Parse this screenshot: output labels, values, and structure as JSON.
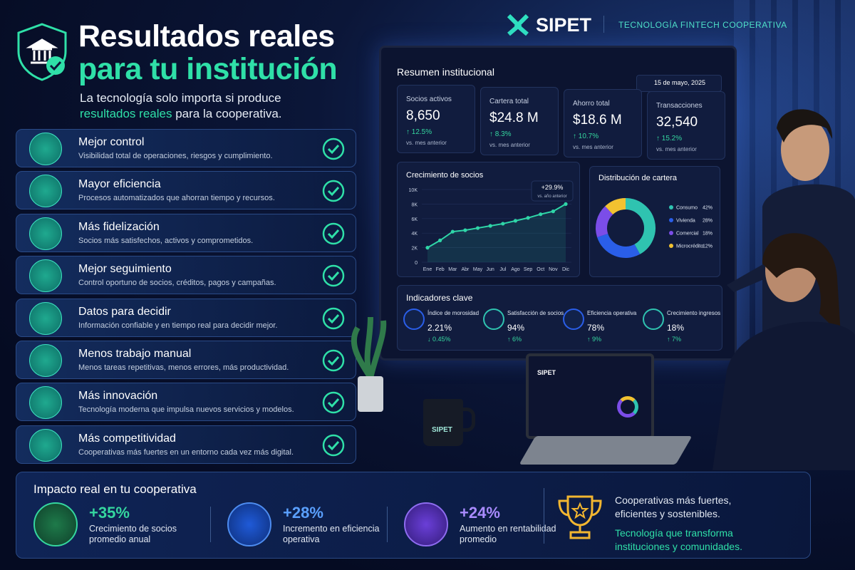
{
  "brand": {
    "name": "SIPET",
    "tagline": "TECNOLOGÍA FINTECH COOPERATIVA"
  },
  "header": {
    "title_line1": "Resultados reales",
    "title_line2": "para tu institución",
    "subtitle_line1": "La tecnología solo importa si produce",
    "subtitle_highlight": "resultados reales",
    "subtitle_end": "para la cooperativa."
  },
  "benefits": [
    {
      "title": "Mejor control",
      "description": "Visibilidad total de operaciones, riesgos y cumplimiento."
    },
    {
      "title": "Mayor eficiencia",
      "description": "Procesos automatizados que ahorran tiempo y recursos."
    },
    {
      "title": "Más fidelización",
      "description": "Socios más satisfechos, activos y comprometidos."
    },
    {
      "title": "Mejor seguimiento",
      "description": "Control oportuno de socios, créditos, pagos y campañas."
    },
    {
      "title": "Datos para decidir",
      "description": "Información confiable y en tiempo real para decidir mejor."
    },
    {
      "title": "Menos trabajo manual",
      "description": "Menos tareas repetitivas, menos errores, más productividad."
    },
    {
      "title": "Más innovación",
      "description": "Tecnología moderna que impulsa nuevos servicios y modelos."
    },
    {
      "title": "Más competitividad",
      "description": "Cooperativas más fuertes en un entorno cada vez más digital."
    }
  ],
  "dashboard": {
    "title": "Resumen institucional",
    "date": "15 de mayo, 2025",
    "kpis": [
      {
        "label": "Socios activos",
        "value": "8,650",
        "change": "12.5%",
        "note": "vs. mes anterior"
      },
      {
        "label": "Cartera total",
        "value": "$24.8 M",
        "change": "8.3%",
        "note": "vs. mes anterior"
      },
      {
        "label": "Ahorro total",
        "value": "$18.6 M",
        "change": "10.7%",
        "note": "vs. mes anterior"
      },
      {
        "label": "Transacciones",
        "value": "32,540",
        "change": "15.2%",
        "note": "vs. mes anterior"
      }
    ],
    "growth_chart": {
      "type": "line",
      "title": "Crecimiento de socios",
      "badge": "+29.9%",
      "badge_note": "vs. año anterior",
      "color": "#2fd6a8",
      "categories": [
        "Ene",
        "Feb",
        "Mar",
        "Abr",
        "May",
        "Jun",
        "Jul",
        "Ago",
        "Sep",
        "Oct",
        "Nov",
        "Dic"
      ],
      "values": [
        2000,
        3000,
        4200,
        4400,
        4700,
        5000,
        5300,
        5700,
        6100,
        6600,
        7000,
        8000
      ],
      "ylim": [
        0,
        10000
      ],
      "yticks": [
        0,
        {
          "value": 2000,
          "label": "2K"
        },
        {
          "value": 4000,
          "label": "4K"
        },
        {
          "value": 6000,
          "label": "6K"
        },
        {
          "value": 8000,
          "label": "8K"
        },
        {
          "value": 10000,
          "label": "10K"
        }
      ]
    },
    "distribution_chart": {
      "type": "pie",
      "title": "Distribución de cartera",
      "categories": [
        "Consumo",
        "Vivienda",
        "Comercial",
        "Microcrédito"
      ],
      "values": [
        42,
        28,
        18,
        12
      ],
      "value_labels": [
        "42%",
        "28%",
        "18%",
        "12%"
      ],
      "colors": [
        "#2fc3b0",
        "#2a5ee8",
        "#7b4de8",
        "#f2c230"
      ]
    },
    "indicators": {
      "title": "Indicadores clave",
      "items": [
        {
          "label": "Índice de morosidad",
          "value": "2.21%",
          "change": "0.45%"
        },
        {
          "label": "Satisfacción de socios",
          "value": "94%",
          "change": "6%"
        },
        {
          "label": "Eficiencia operativa",
          "value": "78%",
          "change": "9%"
        },
        {
          "label": "Crecimiento ingresos",
          "value": "18%",
          "change": "7%"
        }
      ]
    }
  },
  "laptop": {
    "brand": "SIPET"
  },
  "mug": {
    "brand": "SIPET"
  },
  "impact": {
    "title": "Impacto real en tu cooperativa",
    "items": [
      {
        "value": "+35%",
        "label_line1": "Crecimiento de socios",
        "label_line2": "promedio anual"
      },
      {
        "value": "+28%",
        "label_line1": "Incremento en eficiencia",
        "label_line2": "operativa"
      },
      {
        "value": "+24%",
        "label_line1": "Aumento en rentabilidad",
        "label_line2": "promedio"
      }
    ],
    "closing": {
      "line1": "Cooperativas más fuertes,",
      "line2": "eficientes y sostenibles.",
      "highlight_line1": "Tecnología que transforma",
      "highlight_line2": "instituciones y comunidades."
    }
  }
}
